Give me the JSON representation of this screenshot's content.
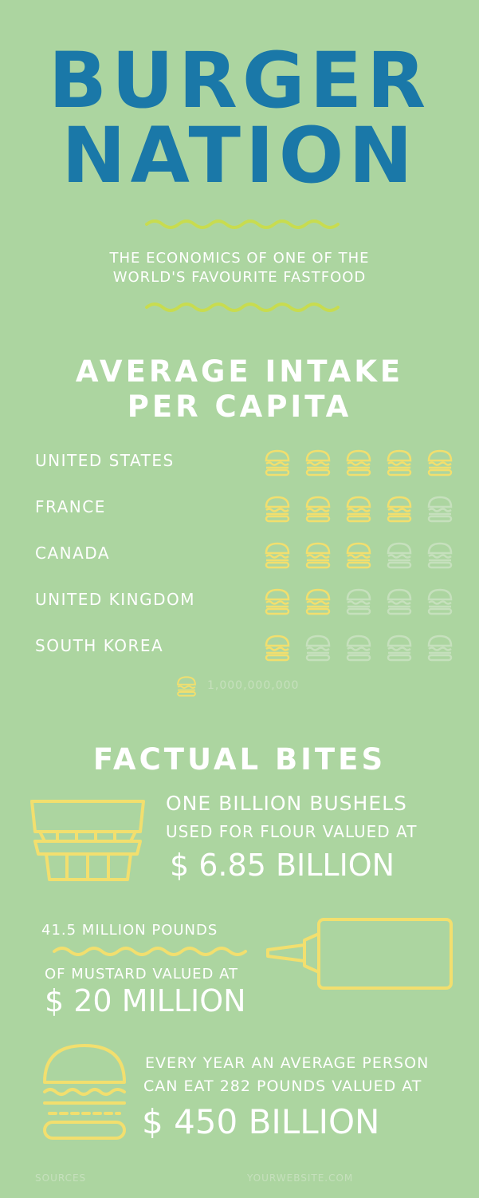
{
  "header": {
    "title_line1": "BURGER",
    "title_line2": "NATION",
    "subtitle_line1": "THE ECONOMICS OF ONE OF THE",
    "subtitle_line2": "WORLD'S FAVOURITE FASTFOOD"
  },
  "intake": {
    "title_line1": "AVERAGE INTAKE",
    "title_line2": "PER CAPITA",
    "countries": [
      {
        "name": "UNITED STATES",
        "filled": 5
      },
      {
        "name": "FRANCE",
        "filled": 4
      },
      {
        "name": "CANADA",
        "filled": 3
      },
      {
        "name": "UNITED KINGDOM",
        "filled": 2
      },
      {
        "name": "SOUTH KOREA",
        "filled": 1
      }
    ],
    "max_icons": 5,
    "legend_value": "1,000,000,000",
    "icon": "burger-icon"
  },
  "facts": {
    "title": "FACTUAL BITES",
    "flour": {
      "line1": "ONE BILLION BUSHELS",
      "line2": "USED FOR FLOUR VALUED AT",
      "value": "$ 6.85 BILLION",
      "icon": "flour-bag-icon"
    },
    "mustard": {
      "line1": "41.5 MILLION POUNDS",
      "line2": "OF MUSTARD VALUED AT",
      "value": "$ 20 MILLION",
      "icon": "mustard-bottle-icon"
    },
    "burgers": {
      "line1": "EVERY YEAR AN AVERAGE PERSON",
      "line2": "CAN EAT 282 POUNDS VALUED AT",
      "value": "$ 450 BILLION",
      "icon": "burger-icon"
    }
  },
  "footer": {
    "sources": "SOURCES",
    "website": "YOURWEBSITE.COM"
  },
  "colors": {
    "background": "#acd5a0",
    "title": "#1a78a8",
    "wave": "#c8dc4f",
    "icon_filled": "#f2df6e",
    "icon_empty": "#c6e0bd",
    "text": "#ffffff"
  }
}
